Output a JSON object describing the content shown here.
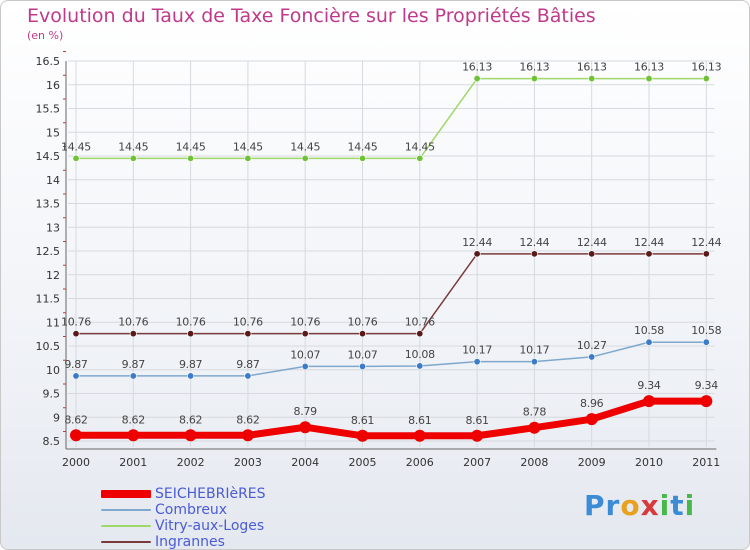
{
  "title": "Evolution du Taux de Taxe Foncière sur les Propriétés Bâties",
  "unit": "(en %)",
  "logo_text": "Proxiti",
  "chart_data": {
    "type": "line",
    "title": "Evolution du Taux de Taxe Foncière sur les Propriétés Bâties",
    "ylabel": "(en %)",
    "xlabel": "",
    "categories": [
      "2000",
      "2001",
      "2002",
      "2003",
      "2004",
      "2005",
      "2006",
      "2007",
      "2008",
      "2009",
      "2010",
      "2011"
    ],
    "ylim": [
      8.5,
      16.5
    ],
    "yticks": [
      "8.5",
      "9",
      "9.5",
      "10",
      "10.5",
      "11",
      "11.5",
      "12",
      "12.5",
      "13",
      "13.5",
      "14",
      "14.5",
      "15",
      "15.5",
      "16",
      "16.5"
    ],
    "legend_position": "bottom-left",
    "series": [
      {
        "name": "SEICHEBRIèRES",
        "color": "#ee0000",
        "marker_color": "#ee0000",
        "width": 7,
        "values": [
          8.62,
          8.62,
          8.62,
          8.62,
          8.79,
          8.61,
          8.61,
          8.61,
          8.78,
          8.96,
          9.34,
          9.34
        ],
        "labels": [
          "8.62",
          "8.62",
          "8.62",
          "8.62",
          "8.79",
          "8.61",
          "8.61",
          "8.61",
          "8.78",
          "8.96",
          "9.34",
          "9.34"
        ]
      },
      {
        "name": "Combreux",
        "color": "#7fa8cc",
        "marker_color": "#3b7bc8",
        "width": 1.5,
        "values": [
          9.87,
          9.87,
          9.87,
          9.87,
          10.07,
          10.07,
          10.08,
          10.17,
          10.17,
          10.27,
          10.58,
          10.58
        ],
        "labels": [
          "9.87",
          "9.87",
          "9.87",
          "9.87",
          "10.07",
          "10.07",
          "10.08",
          "10.17",
          "10.17",
          "10.27",
          "10.58",
          "10.58"
        ]
      },
      {
        "name": "Vitry-aux-Loges",
        "color": "#9fd76a",
        "marker_color": "#6fc238",
        "width": 1.5,
        "values": [
          14.45,
          14.45,
          14.45,
          14.45,
          14.45,
          14.45,
          14.45,
          16.13,
          16.13,
          16.13,
          16.13,
          16.13
        ],
        "labels": [
          "14.45",
          "14.45",
          "14.45",
          "14.45",
          "14.45",
          "14.45",
          "14.45",
          "16.13",
          "16.13",
          "16.13",
          "16.13",
          "16.13"
        ]
      },
      {
        "name": "Ingrannes",
        "color": "#7a3a3a",
        "marker_color": "#5a1a1a",
        "width": 1.5,
        "values": [
          10.76,
          10.76,
          10.76,
          10.76,
          10.76,
          10.76,
          10.76,
          12.44,
          12.44,
          12.44,
          12.44,
          12.44
        ],
        "labels": [
          "10.76",
          "10.76",
          "10.76",
          "10.76",
          "10.76",
          "10.76",
          "10.76",
          "12.44",
          "12.44",
          "12.44",
          "12.44",
          "12.44"
        ]
      }
    ]
  }
}
